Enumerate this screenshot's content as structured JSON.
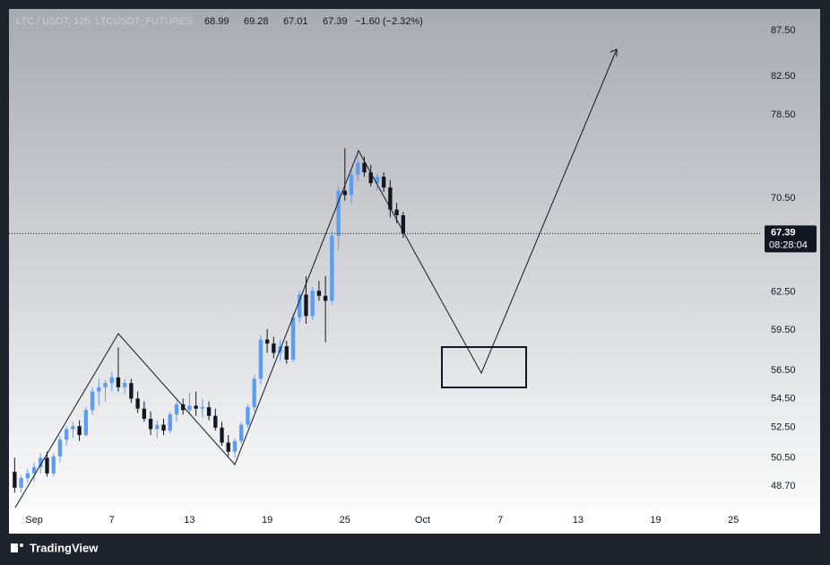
{
  "chart_data": {
    "type": "candlestick",
    "title": "LTC / USDT, 12h, LTCUSDT_FUTURES",
    "change_label": "−1.60 (−2.32%)",
    "countdown": "08:28:04",
    "log_scale": true,
    "up_color": "#5b9cf6",
    "down_color": "#131722",
    "xlim": [
      -1.94,
      56.06
    ],
    "xticks": [
      {
        "value": 0,
        "label": "Sep"
      },
      {
        "value": 6,
        "label": "7"
      },
      {
        "value": 12,
        "label": "13"
      },
      {
        "value": 18,
        "label": "19"
      },
      {
        "value": 24,
        "label": "25"
      },
      {
        "value": 30,
        "label": "Oct"
      },
      {
        "value": 36,
        "label": "7"
      },
      {
        "value": 42,
        "label": "13"
      },
      {
        "value": 48,
        "label": "19"
      },
      {
        "value": 54,
        "label": "25"
      }
    ],
    "ylim": [
      47.26,
      89.95
    ],
    "yticks": [
      {
        "value": 48.7,
        "label": "48.70"
      },
      {
        "value": 50.5,
        "label": "50.50"
      },
      {
        "value": 52.5,
        "label": "52.50"
      },
      {
        "value": 54.5,
        "label": "54.50"
      },
      {
        "value": 56.5,
        "label": "56.50"
      },
      {
        "value": 59.5,
        "label": "59.50"
      },
      {
        "value": 62.5,
        "label": "62.50"
      },
      {
        "value": 70.5,
        "label": "70.50"
      },
      {
        "value": 78.5,
        "label": "78.50"
      },
      {
        "value": 82.5,
        "label": "82.50"
      },
      {
        "value": 87.5,
        "label": "87.50"
      }
    ],
    "x": [
      -1.5,
      -1,
      -0.5,
      0,
      0.5,
      1,
      1.5,
      2,
      2.5,
      3,
      3.5,
      4,
      4.5,
      5,
      5.5,
      6,
      6.5,
      7,
      7.5,
      8,
      8.5,
      9,
      9.5,
      10,
      10.5,
      11,
      11.5,
      12,
      12.5,
      13,
      13.5,
      14,
      14.5,
      15,
      15.5,
      16,
      16.5,
      17,
      17.5,
      18,
      18.5,
      19,
      19.5,
      20,
      20.5,
      21,
      21.5,
      22,
      22.5,
      23,
      23.5,
      24,
      24.5,
      25,
      25.5,
      26,
      26.5,
      27,
      27.5,
      28,
      28.5
    ],
    "ohlc": [
      [
        49.6,
        50.5,
        48.3,
        48.6
      ],
      [
        48.6,
        49.4,
        48.3,
        49.2
      ],
      [
        49.2,
        49.8,
        48.9,
        49.5
      ],
      [
        49.5,
        50.2,
        49.0,
        49.9
      ],
      [
        49.9,
        50.8,
        49.5,
        50.5
      ],
      [
        50.5,
        50.9,
        49.3,
        49.5
      ],
      [
        49.5,
        50.8,
        49.3,
        50.6
      ],
      [
        50.6,
        51.9,
        50.2,
        51.7
      ],
      [
        51.7,
        52.6,
        51.3,
        52.4
      ],
      [
        52.4,
        52.9,
        51.8,
        52.6
      ],
      [
        52.6,
        53.0,
        51.6,
        52.0
      ],
      [
        52.0,
        53.9,
        51.9,
        53.7
      ],
      [
        53.7,
        55.3,
        53.4,
        55.0
      ],
      [
        55.0,
        55.9,
        54.0,
        55.3
      ],
      [
        55.3,
        55.8,
        54.3,
        55.6
      ],
      [
        55.6,
        56.4,
        55.0,
        56.0
      ],
      [
        56.0,
        58.2,
        55.0,
        55.3
      ],
      [
        55.3,
        55.9,
        54.8,
        55.6
      ],
      [
        55.6,
        55.9,
        54.2,
        54.5
      ],
      [
        54.5,
        55.0,
        53.5,
        53.8
      ],
      [
        53.8,
        54.3,
        52.9,
        53.1
      ],
      [
        53.1,
        53.6,
        52.0,
        52.4
      ],
      [
        52.4,
        53.0,
        51.8,
        52.7
      ],
      [
        52.7,
        53.1,
        52.0,
        52.3
      ],
      [
        52.3,
        53.6,
        52.1,
        53.4
      ],
      [
        53.4,
        54.3,
        52.9,
        54.1
      ],
      [
        54.1,
        54.5,
        53.4,
        53.7
      ],
      [
        53.7,
        54.9,
        53.5,
        54.0
      ],
      [
        54.0,
        55.0,
        53.3,
        53.8
      ],
      [
        53.8,
        54.5,
        53.2,
        53.9
      ],
      [
        53.9,
        54.3,
        53.0,
        53.3
      ],
      [
        53.3,
        53.8,
        52.3,
        52.5
      ],
      [
        52.5,
        52.9,
        51.3,
        51.5
      ],
      [
        51.5,
        52.0,
        50.6,
        50.9
      ],
      [
        50.9,
        51.8,
        50.5,
        51.6
      ],
      [
        51.6,
        52.9,
        51.4,
        52.7
      ],
      [
        52.7,
        54.1,
        52.5,
        53.9
      ],
      [
        53.9,
        56.2,
        53.6,
        55.9
      ],
      [
        55.9,
        59.1,
        55.5,
        58.8
      ],
      [
        58.8,
        59.6,
        57.8,
        58.5
      ],
      [
        58.5,
        59.0,
        57.4,
        57.8
      ],
      [
        57.8,
        58.8,
        57.2,
        58.3
      ],
      [
        58.3,
        58.7,
        57.0,
        57.3
      ],
      [
        57.3,
        60.8,
        57.1,
        60.5
      ],
      [
        60.5,
        62.6,
        60.1,
        62.3
      ],
      [
        62.3,
        63.8,
        60.0,
        60.6
      ],
      [
        60.6,
        62.9,
        60.3,
        62.6
      ],
      [
        62.6,
        63.4,
        61.8,
        62.2
      ],
      [
        62.2,
        63.8,
        58.6,
        61.8
      ],
      [
        61.8,
        67.6,
        61.5,
        67.2
      ],
      [
        67.2,
        71.6,
        66.0,
        71.2
      ],
      [
        71.2,
        75.2,
        70.3,
        70.8
      ],
      [
        70.8,
        73.2,
        70.0,
        72.7
      ],
      [
        72.7,
        75.0,
        72.1,
        73.8
      ],
      [
        73.8,
        74.4,
        72.5,
        72.9
      ],
      [
        72.9,
        73.6,
        71.6,
        71.9
      ],
      [
        71.9,
        72.8,
        71.2,
        72.5
      ],
      [
        72.5,
        72.9,
        71.1,
        71.5
      ],
      [
        71.5,
        72.2,
        68.8,
        69.5
      ],
      [
        69.5,
        70.1,
        68.3,
        68.99
      ],
      [
        68.99,
        69.28,
        67.01,
        67.39
      ]
    ]
  },
  "brand": "TradingView"
}
